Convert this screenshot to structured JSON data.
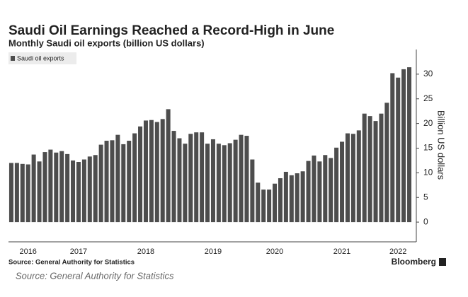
{
  "chart_data": {
    "type": "bar",
    "title": "Saudi Oil Earnings Reached a Record-High in June",
    "subtitle": "Monthly Saudi oil exports (billion US dollars)",
    "y_label": "Billion US dollars",
    "categories": [
      null,
      null,
      null,
      "2016",
      null,
      null,
      null,
      null,
      null,
      null,
      null,
      null,
      "2017",
      null,
      null,
      null,
      null,
      null,
      null,
      null,
      null,
      null,
      null,
      null,
      "2018",
      null,
      null,
      null,
      null,
      null,
      null,
      null,
      null,
      null,
      null,
      null,
      "2019",
      null,
      null,
      null,
      null,
      null,
      null,
      null,
      null,
      null,
      null,
      "2020",
      null,
      null,
      null,
      null,
      null,
      null,
      null,
      null,
      null,
      null,
      null,
      "2021",
      null,
      null,
      null,
      null,
      null,
      null,
      null,
      null,
      null,
      "2022",
      null,
      null
    ],
    "series": [
      {
        "name": "Saudi oil exports",
        "color": "#4d4d4d",
        "values": [
          12.0,
          12.0,
          11.8,
          11.7,
          13.7,
          12.3,
          14.2,
          14.7,
          14.1,
          14.4,
          13.8,
          12.5,
          12.2,
          12.7,
          13.3,
          13.6,
          15.7,
          16.5,
          16.6,
          17.7,
          15.8,
          16.5,
          18.0,
          19.4,
          20.6,
          20.7,
          20.3,
          20.9,
          22.9,
          18.5,
          17.0,
          15.9,
          17.9,
          18.2,
          18.2,
          15.9,
          16.8,
          15.9,
          15.6,
          16.0,
          16.7,
          17.7,
          17.5,
          12.7,
          8.0,
          6.6,
          6.6,
          7.8,
          8.9,
          10.2,
          9.5,
          9.9,
          10.3,
          12.4,
          13.5,
          12.3,
          13.6,
          13.0,
          15.1,
          16.3,
          18.0,
          17.9,
          18.6,
          22.0,
          21.5,
          20.5,
          22.0,
          24.2,
          30.2,
          29.3,
          31.0,
          31.4
        ]
      }
    ],
    "ylim": [
      -4,
      35
    ],
    "yticks": [
      0,
      5,
      10,
      15,
      20,
      25,
      30
    ],
    "legend": "top-left"
  },
  "footer": {
    "source": "Source: General Authority for Statistics",
    "brand": "Bloomberg",
    "caption": "Source: General Authority for Statistics"
  }
}
